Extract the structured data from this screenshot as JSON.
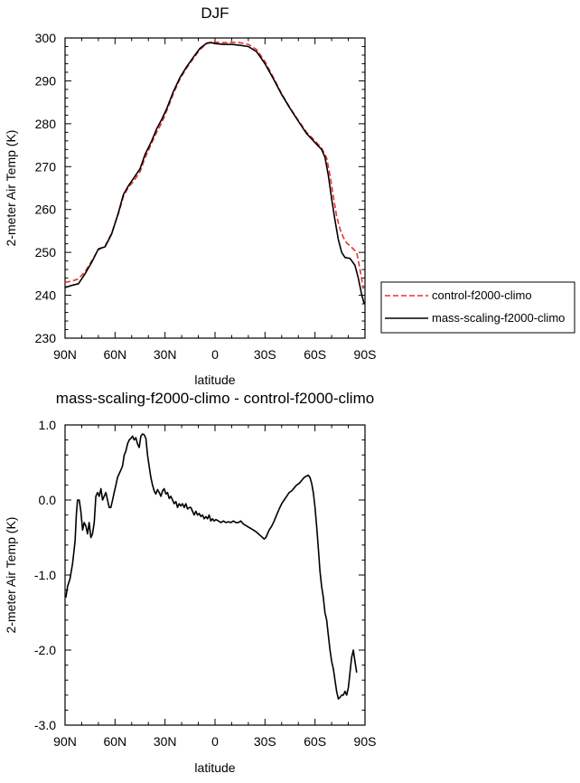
{
  "chart_data": [
    {
      "type": "line",
      "title": "DJF",
      "xlabel": "latitude",
      "ylabel": "2-meter Air Temp (K)",
      "xlim": [
        -90,
        90
      ],
      "ylim": [
        230,
        300
      ],
      "x_ticks": [
        -90,
        -60,
        -30,
        0,
        30,
        60,
        90
      ],
      "x_tick_labels": [
        "90N",
        "60N",
        "30N",
        "0",
        "30S",
        "60S",
        "90S"
      ],
      "y_ticks": [
        230,
        240,
        250,
        260,
        270,
        280,
        290,
        300
      ],
      "y_tick_labels": [
        "230",
        "240",
        "250",
        "260",
        "270",
        "280",
        "290",
        "300"
      ],
      "grid": false,
      "legend_placement": "right",
      "series": [
        {
          "name": "control-f2000-climo",
          "color": "#e8312a",
          "dash": "dashed",
          "points": [
            [
              -90,
              243.0
            ],
            [
              -86,
              243.3
            ],
            [
              -82,
              243.8
            ],
            [
              -78,
              245.5
            ],
            [
              -74,
              248.0
            ],
            [
              -70,
              250.6
            ],
            [
              -66,
              251.5
            ],
            [
              -62,
              254.5
            ],
            [
              -58,
              259.0
            ],
            [
              -55,
              263.0
            ],
            [
              -52,
              265.2
            ],
            [
              -49,
              266.5
            ],
            [
              -45,
              268.8
            ],
            [
              -42,
              272.0
            ],
            [
              -38,
              275.5
            ],
            [
              -35,
              278.0
            ],
            [
              -32,
              280.2
            ],
            [
              -29,
              283.0
            ],
            [
              -25,
              287.0
            ],
            [
              -21,
              290.5
            ],
            [
              -17,
              293.0
            ],
            [
              -13,
              295.2
            ],
            [
              -9,
              297.3
            ],
            [
              -5,
              298.7
            ],
            [
              -2,
              299.1
            ],
            [
              0,
              299.0
            ],
            [
              5,
              298.9
            ],
            [
              10,
              299.0
            ],
            [
              15,
              298.9
            ],
            [
              20,
              298.5
            ],
            [
              25,
              297.3
            ],
            [
              30,
              294.5
            ],
            [
              35,
              290.8
            ],
            [
              40,
              287.0
            ],
            [
              45,
              283.7
            ],
            [
              50,
              280.8
            ],
            [
              55,
              278.0
            ],
            [
              60,
              276.0
            ],
            [
              64,
              274.3
            ],
            [
              67,
              272.0
            ],
            [
              69,
              268.0
            ],
            [
              71,
              263.0
            ],
            [
              73,
              258.5
            ],
            [
              75,
              255.5
            ],
            [
              77,
              253.5
            ],
            [
              79,
              252.2
            ],
            [
              82,
              251.2
            ],
            [
              85,
              250.0
            ],
            [
              87,
              246.0
            ],
            [
              89,
              241.5
            ]
          ]
        },
        {
          "name": "mass-scaling-f2000-climo",
          "color": "#000000",
          "dash": "solid",
          "points": [
            [
              -90,
              241.8
            ],
            [
              -86,
              242.3
            ],
            [
              -82,
              242.7
            ],
            [
              -78,
              245.0
            ],
            [
              -74,
              247.7
            ],
            [
              -70,
              250.8
            ],
            [
              -66,
              251.3
            ],
            [
              -62,
              254.3
            ],
            [
              -58,
              259.2
            ],
            [
              -55,
              263.5
            ],
            [
              -52,
              265.5
            ],
            [
              -49,
              267.2
            ],
            [
              -45,
              269.5
            ],
            [
              -42,
              272.8
            ],
            [
              -38,
              276.0
            ],
            [
              -35,
              278.8
            ],
            [
              -32,
              281.0
            ],
            [
              -29,
              283.5
            ],
            [
              -25,
              287.5
            ],
            [
              -21,
              290.8
            ],
            [
              -17,
              293.3
            ],
            [
              -13,
              295.5
            ],
            [
              -9,
              297.6
            ],
            [
              -5,
              298.8
            ],
            [
              -2,
              298.9
            ],
            [
              0,
              298.7
            ],
            [
              5,
              298.5
            ],
            [
              10,
              298.5
            ],
            [
              15,
              298.3
            ],
            [
              20,
              298.0
            ],
            [
              25,
              296.8
            ],
            [
              30,
              294.0
            ],
            [
              35,
              290.5
            ],
            [
              40,
              286.8
            ],
            [
              45,
              283.6
            ],
            [
              50,
              280.6
            ],
            [
              55,
              277.7
            ],
            [
              60,
              275.6
            ],
            [
              64,
              274.0
            ],
            [
              66,
              272.2
            ],
            [
              68,
              268.0
            ],
            [
              70,
              262.5
            ],
            [
              72,
              257.5
            ],
            [
              74,
              253.0
            ],
            [
              76,
              250.0
            ],
            [
              78,
              248.8
            ],
            [
              81,
              248.6
            ],
            [
              84,
              247.0
            ],
            [
              86,
              244.0
            ],
            [
              88,
              240.2
            ],
            [
              89.5,
              238.0
            ]
          ]
        }
      ]
    },
    {
      "type": "line",
      "title": "mass-scaling-f2000-climo - control-f2000-climo",
      "xlabel": "latitude",
      "ylabel": "2-meter Air Temp (K)",
      "xlim": [
        -90,
        90
      ],
      "ylim": [
        -3.0,
        1.0
      ],
      "x_ticks": [
        -90,
        -60,
        -30,
        0,
        30,
        60,
        90
      ],
      "x_tick_labels": [
        "90N",
        "60N",
        "30N",
        "0",
        "30S",
        "60S",
        "90S"
      ],
      "y_ticks": [
        -3.0,
        -2.0,
        -1.0,
        0.0,
        1.0
      ],
      "y_tick_labels": [
        "-3.0",
        "-2.0",
        "-1.0",
        "0.0",
        "1.0"
      ],
      "grid": false,
      "series": [
        {
          "color": "#000000",
          "dash": "solid",
          "points": [
            [
              -89.5,
              -1.3
            ],
            [
              -88.5,
              -1.15
            ],
            [
              -87,
              -1.05
            ],
            [
              -85.5,
              -0.85
            ],
            [
              -84,
              -0.55
            ],
            [
              -83.2,
              -0.2
            ],
            [
              -82.5,
              0.0
            ],
            [
              -81.5,
              0.0
            ],
            [
              -80.5,
              -0.15
            ],
            [
              -79.5,
              -0.4
            ],
            [
              -78.5,
              -0.3
            ],
            [
              -77.5,
              -0.35
            ],
            [
              -76.5,
              -0.45
            ],
            [
              -75.5,
              -0.3
            ],
            [
              -74.5,
              -0.5
            ],
            [
              -73.5,
              -0.45
            ],
            [
              -72.5,
              -0.3
            ],
            [
              -71.5,
              0.05
            ],
            [
              -70.5,
              0.1
            ],
            [
              -69.5,
              0.05
            ],
            [
              -68.5,
              0.15
            ],
            [
              -67.5,
              0.0
            ],
            [
              -66.5,
              0.05
            ],
            [
              -65.5,
              0.1
            ],
            [
              -64.5,
              0.0
            ],
            [
              -63.5,
              -0.1
            ],
            [
              -62.5,
              -0.1
            ],
            [
              -61.5,
              0.0
            ],
            [
              -60.5,
              0.1
            ],
            [
              -59.5,
              0.2
            ],
            [
              -58.5,
              0.3
            ],
            [
              -57.5,
              0.35
            ],
            [
              -56.5,
              0.4
            ],
            [
              -55.5,
              0.45
            ],
            [
              -54.5,
              0.6
            ],
            [
              -53.5,
              0.65
            ],
            [
              -52.5,
              0.75
            ],
            [
              -51.5,
              0.8
            ],
            [
              -50.5,
              0.82
            ],
            [
              -49.5,
              0.85
            ],
            [
              -48.5,
              0.8
            ],
            [
              -47.5,
              0.83
            ],
            [
              -46.5,
              0.75
            ],
            [
              -45.5,
              0.7
            ],
            [
              -44.5,
              0.85
            ],
            [
              -43.5,
              0.88
            ],
            [
              -42.5,
              0.87
            ],
            [
              -41.5,
              0.82
            ],
            [
              -40.5,
              0.6
            ],
            [
              -39.5,
              0.45
            ],
            [
              -38.5,
              0.3
            ],
            [
              -37.5,
              0.2
            ],
            [
              -36.5,
              0.12
            ],
            [
              -35.5,
              0.08
            ],
            [
              -34.5,
              0.14
            ],
            [
              -33.5,
              0.1
            ],
            [
              -32.5,
              0.05
            ],
            [
              -31.5,
              0.12
            ],
            [
              -30.5,
              0.15
            ],
            [
              -29.5,
              0.08
            ],
            [
              -28.5,
              0.1
            ],
            [
              -27.5,
              0.02
            ],
            [
              -26.5,
              0.05
            ],
            [
              -25.5,
              0.0
            ],
            [
              -24.5,
              -0.05
            ],
            [
              -23.5,
              -0.02
            ],
            [
              -22.5,
              -0.1
            ],
            [
              -21.5,
              -0.05
            ],
            [
              -20.5,
              -0.08
            ],
            [
              -19.5,
              -0.05
            ],
            [
              -18.5,
              -0.1
            ],
            [
              -17.5,
              -0.05
            ],
            [
              -16.5,
              -0.12
            ],
            [
              -15.5,
              -0.1
            ],
            [
              -14.5,
              -0.1
            ],
            [
              -13.5,
              -0.15
            ],
            [
              -12.5,
              -0.2
            ],
            [
              -11.5,
              -0.15
            ],
            [
              -10.5,
              -0.2
            ],
            [
              -9.5,
              -0.18
            ],
            [
              -8.5,
              -0.22
            ],
            [
              -7.5,
              -0.2
            ],
            [
              -6.5,
              -0.25
            ],
            [
              -5.5,
              -0.22
            ],
            [
              -4.5,
              -0.25
            ],
            [
              -3.5,
              -0.2
            ],
            [
              -2.5,
              -0.28
            ],
            [
              -1.5,
              -0.25
            ],
            [
              -0.5,
              -0.28
            ],
            [
              0.5,
              -0.26
            ],
            [
              2,
              -0.28
            ],
            [
              3.5,
              -0.3
            ],
            [
              5,
              -0.28
            ],
            [
              6.5,
              -0.3
            ],
            [
              8,
              -0.29
            ],
            [
              9.5,
              -0.3
            ],
            [
              11,
              -0.28
            ],
            [
              12.5,
              -0.3
            ],
            [
              14,
              -0.3
            ],
            [
              15.5,
              -0.28
            ],
            [
              17,
              -0.32
            ],
            [
              18.5,
              -0.34
            ],
            [
              20,
              -0.36
            ],
            [
              21.5,
              -0.38
            ],
            [
              23,
              -0.4
            ],
            [
              24.5,
              -0.42
            ],
            [
              26,
              -0.45
            ],
            [
              27.5,
              -0.48
            ],
            [
              28.5,
              -0.5
            ],
            [
              29.5,
              -0.52
            ],
            [
              30.5,
              -0.5
            ],
            [
              31.5,
              -0.45
            ],
            [
              32.5,
              -0.4
            ],
            [
              34,
              -0.35
            ],
            [
              35.5,
              -0.28
            ],
            [
              37,
              -0.2
            ],
            [
              38.5,
              -0.12
            ],
            [
              40,
              -0.05
            ],
            [
              41.5,
              0.0
            ],
            [
              43,
              0.05
            ],
            [
              44.5,
              0.1
            ],
            [
              46,
              0.12
            ],
            [
              47.5,
              0.16
            ],
            [
              49,
              0.2
            ],
            [
              50.5,
              0.22
            ],
            [
              52,
              0.26
            ],
            [
              53.5,
              0.3
            ],
            [
              55,
              0.32
            ],
            [
              56,
              0.33
            ],
            [
              57,
              0.3
            ],
            [
              58,
              0.22
            ],
            [
              59,
              0.1
            ],
            [
              60,
              -0.1
            ],
            [
              61,
              -0.35
            ],
            [
              62,
              -0.65
            ],
            [
              63,
              -0.95
            ],
            [
              64,
              -1.15
            ],
            [
              65,
              -1.3
            ],
            [
              66,
              -1.5
            ],
            [
              67,
              -1.6
            ],
            [
              68,
              -1.8
            ],
            [
              69,
              -2.0
            ],
            [
              70,
              -2.15
            ],
            [
              71,
              -2.25
            ],
            [
              72,
              -2.4
            ],
            [
              73,
              -2.55
            ],
            [
              74,
              -2.65
            ],
            [
              75,
              -2.63
            ],
            [
              76,
              -2.6
            ],
            [
              77,
              -2.6
            ],
            [
              78,
              -2.55
            ],
            [
              79,
              -2.6
            ],
            [
              80,
              -2.5
            ],
            [
              81,
              -2.3
            ],
            [
              82,
              -2.1
            ],
            [
              83,
              -2.0
            ],
            [
              84,
              -2.15
            ],
            [
              85,
              -2.3
            ]
          ]
        }
      ]
    }
  ]
}
